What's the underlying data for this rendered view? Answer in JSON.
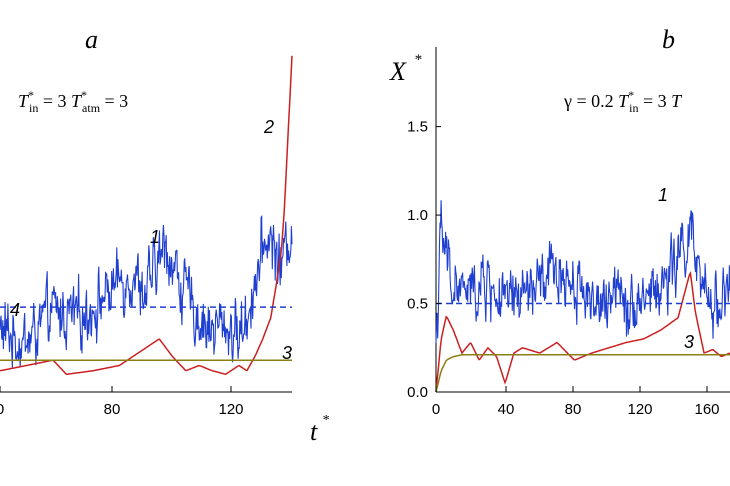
{
  "chart_data": [
    {
      "panel": "a",
      "type": "line",
      "params_text": "T*in = 3    T*atm = 3",
      "xlabel": "t*",
      "xticks": [
        "0",
        "80",
        "120"
      ],
      "xlim": [
        35,
        145
      ],
      "ylim": [
        0,
        2.0
      ],
      "curve_labels": [
        "1",
        "2",
        "3",
        "4"
      ],
      "series": [
        {
          "label": "1",
          "color": "#1f3fd0",
          "style": "solid",
          "noisy": true,
          "x": [
            35,
            45,
            55,
            65,
            75,
            80,
            85,
            90,
            95,
            98,
            100,
            105,
            110,
            115,
            120,
            125,
            128,
            130,
            133,
            136,
            139,
            141,
            143,
            145
          ],
          "y": [
            0.35,
            0.28,
            0.45,
            0.42,
            0.55,
            0.62,
            0.68,
            0.55,
            0.75,
            0.82,
            0.72,
            0.55,
            0.42,
            0.35,
            0.38,
            0.32,
            0.42,
            0.58,
            0.72,
            0.9,
            0.78,
            0.72,
            0.82,
            0.95
          ]
        },
        {
          "label": "2",
          "color": "#cc2020",
          "style": "solid",
          "noisy": false,
          "x": [
            35,
            45,
            55,
            60,
            70,
            80,
            90,
            95,
            100,
            105,
            110,
            115,
            120,
            125,
            128,
            131,
            134,
            137,
            139,
            141,
            142,
            143,
            144,
            145
          ],
          "y": [
            0.12,
            0.15,
            0.18,
            0.1,
            0.12,
            0.15,
            0.25,
            0.3,
            0.2,
            0.12,
            0.15,
            0.12,
            0.1,
            0.15,
            0.12,
            0.2,
            0.3,
            0.42,
            0.6,
            0.8,
            1.0,
            1.3,
            1.6,
            1.9
          ]
        },
        {
          "label": "3",
          "color": "#8a7f10",
          "style": "solid",
          "noisy": false,
          "x": [
            35,
            145
          ],
          "y": [
            0.18,
            0.18
          ]
        },
        {
          "label": "4",
          "color": "#1f3fd0",
          "style": "dashed",
          "noisy": false,
          "x": [
            35,
            145
          ],
          "y": [
            0.48,
            0.48
          ]
        }
      ]
    },
    {
      "panel": "b",
      "type": "line",
      "params_text": "γ = 0.2    T*in = 3    T",
      "ylabel": "X*",
      "xticks": [
        "0",
        "40",
        "80",
        "120",
        "160"
      ],
      "yticks": [
        "0.0",
        "0.5",
        "1.0",
        "1.5"
      ],
      "xlim": [
        0,
        170
      ],
      "ylim": [
        0,
        2.0
      ],
      "curve_labels": [
        "1",
        "3"
      ],
      "series": [
        {
          "label": "1",
          "color": "#1f3fd0",
          "style": "solid",
          "noisy": true,
          "x": [
            0,
            3,
            6,
            10,
            20,
            30,
            40,
            50,
            60,
            70,
            80,
            90,
            100,
            105,
            110,
            120,
            130,
            140,
            147,
            150,
            155,
            160,
            165,
            170
          ],
          "y": [
            0.3,
            0.9,
            0.75,
            0.6,
            0.55,
            0.62,
            0.48,
            0.55,
            0.6,
            0.68,
            0.62,
            0.55,
            0.42,
            0.72,
            0.5,
            0.55,
            0.58,
            0.75,
            0.92,
            0.72,
            0.52,
            0.5,
            0.55,
            0.6
          ]
        },
        {
          "label": "3",
          "color": "#cc2020",
          "style": "solid",
          "noisy": false,
          "x": [
            0,
            3,
            6,
            10,
            15,
            20,
            25,
            30,
            35,
            40,
            45,
            50,
            60,
            70,
            80,
            90,
            100,
            110,
            120,
            130,
            140,
            147,
            150,
            155,
            160,
            165,
            170
          ],
          "y": [
            0.0,
            0.3,
            0.43,
            0.35,
            0.22,
            0.28,
            0.18,
            0.25,
            0.2,
            0.05,
            0.22,
            0.25,
            0.22,
            0.28,
            0.18,
            0.22,
            0.25,
            0.28,
            0.3,
            0.35,
            0.42,
            0.68,
            0.45,
            0.22,
            0.24,
            0.2,
            0.22
          ]
        },
        {
          "label": "",
          "color": "#8a7f10",
          "style": "solid",
          "noisy": false,
          "x": [
            0,
            3,
            6,
            10,
            15,
            170
          ],
          "y": [
            0.0,
            0.12,
            0.18,
            0.2,
            0.21,
            0.21
          ]
        },
        {
          "label": "",
          "color": "#1f3fd0",
          "style": "dashed",
          "noisy": false,
          "x": [
            0,
            170
          ],
          "y": [
            0.5,
            0.5
          ]
        }
      ]
    }
  ]
}
